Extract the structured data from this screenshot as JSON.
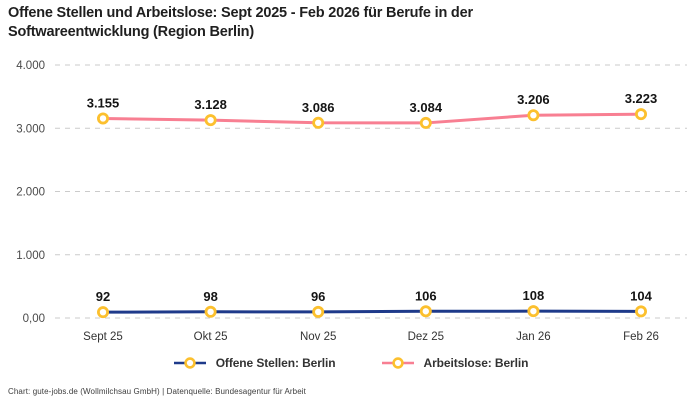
{
  "title": "Offene Stellen und Arbeitslose: Sept 2025 - Feb 2026 für Berufe in der Softwareentwicklung (Region Berlin)",
  "footer": "Chart: gute-jobs.de (Wollmilchsau GmbH) | Datenquelle: Bundesagentur für Arbeit",
  "chart_data": {
    "type": "line",
    "categories": [
      "Sept 25",
      "Okt 25",
      "Nov 25",
      "Dez 25",
      "Jan 26",
      "Feb 26"
    ],
    "series": [
      {
        "name": "Offene Stellen: Berlin",
        "color": "#1e3a8a",
        "values": [
          92,
          98,
          96,
          106,
          108,
          104
        ],
        "point_labels": [
          "92",
          "98",
          "96",
          "106",
          "108",
          "104"
        ]
      },
      {
        "name": "Arbeitslose: Berlin",
        "color": "#f87f92",
        "values": [
          3155,
          3128,
          3086,
          3084,
          3206,
          3223
        ],
        "point_labels": [
          "3.155",
          "3.128",
          "3.086",
          "3.084",
          "3.206",
          "3.223"
        ]
      }
    ],
    "marker": {
      "shape": "circle",
      "ring_color": "#fcc02e",
      "fill": "#ffffff"
    },
    "ylim": [
      0,
      4000
    ],
    "yticks": [
      {
        "value": 0,
        "label": "0,00"
      },
      {
        "value": 1000,
        "label": "1.000"
      },
      {
        "value": 2000,
        "label": "2.000"
      },
      {
        "value": 3000,
        "label": "3.000"
      },
      {
        "value": 4000,
        "label": "4.000"
      }
    ],
    "grid": "horizontal-dashed",
    "grid_color": "#cbcbcb",
    "legend_position": "bottom",
    "xlabel": "",
    "ylabel": ""
  }
}
